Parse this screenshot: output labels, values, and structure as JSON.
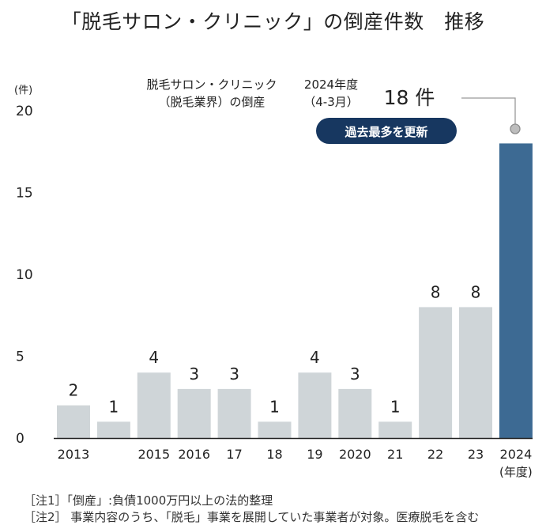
{
  "title": "「脱毛サロン・クリニック」の倒産件数　推移",
  "chart_data": {
    "type": "bar",
    "title": "「脱毛サロン・クリニック」の倒産件数　推移",
    "ylabel": "(件)",
    "ylim": [
      0,
      20
    ],
    "yticks": [
      0,
      5,
      10,
      15,
      20
    ],
    "xlabel_unit": "(年度)",
    "categories": [
      "2013",
      "",
      "2015",
      "2016",
      "17",
      "18",
      "19",
      "2020",
      "21",
      "22",
      "23",
      "2024"
    ],
    "values": [
      2,
      1,
      4,
      3,
      3,
      1,
      4,
      3,
      1,
      8,
      8,
      18
    ],
    "data_labels": [
      "2",
      "1",
      "4",
      "3",
      "3",
      "1",
      "4",
      "3",
      "1",
      "8",
      "8",
      ""
    ],
    "highlight_index": 11,
    "colors": {
      "bar": "#cfd5d8",
      "highlight": "#3d6a93",
      "badge": "#173760",
      "axis": "#222222",
      "leader": "#999999",
      "marker": "#bdbdbd"
    },
    "annotation": {
      "series_label_line1": "脱毛サロン・クリニック",
      "series_label_line2": "（脱毛業界）の倒産",
      "period_line1": "2024年度",
      "period_line2": "（4-3月）",
      "count": "18 件",
      "badge": "過去最多を更新"
    }
  },
  "notes": [
    "［注1］「倒産」:負債1000万円以上の法的整理",
    "［注2］ 事業内容のうち、「脱毛」事業を展開していた事業者が対象。医療脱毛を含む"
  ]
}
